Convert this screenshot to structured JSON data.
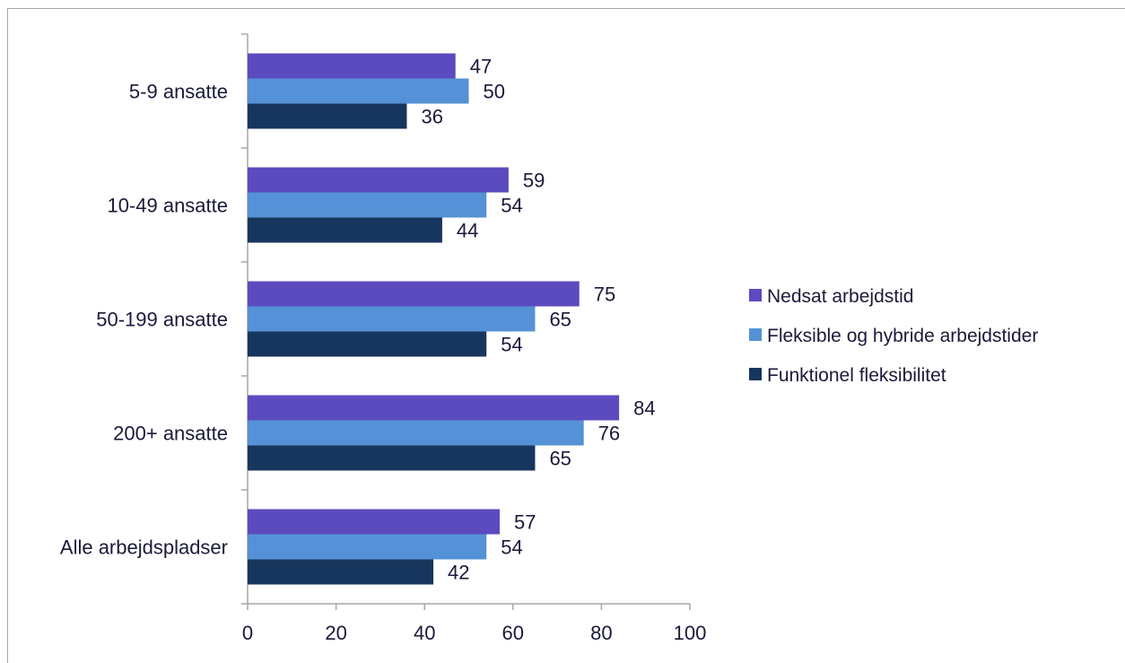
{
  "chart_data": {
    "type": "bar",
    "orientation": "horizontal",
    "categories": [
      "5-9 ansatte",
      "10-49 ansatte",
      "50-199 ansatte",
      "200+ ansatte",
      "Alle arbejdspladser"
    ],
    "series": [
      {
        "name": "Nedsat arbejdstid",
        "color": "#5b4bbf",
        "values": [
          47,
          59,
          75,
          84,
          57
        ]
      },
      {
        "name": "Fleksible og hybride arbejdstider",
        "color": "#5591d6",
        "values": [
          50,
          54,
          65,
          76,
          54
        ]
      },
      {
        "name": "Funktionel fleksibilitet",
        "color": "#17365d",
        "values": [
          36,
          44,
          54,
          65,
          42
        ]
      }
    ],
    "xlim": [
      0,
      100
    ],
    "xticks": [
      0,
      20,
      40,
      60,
      80,
      100
    ],
    "grid": false,
    "legend_position": "right",
    "title": "",
    "xlabel": "",
    "ylabel": ""
  }
}
